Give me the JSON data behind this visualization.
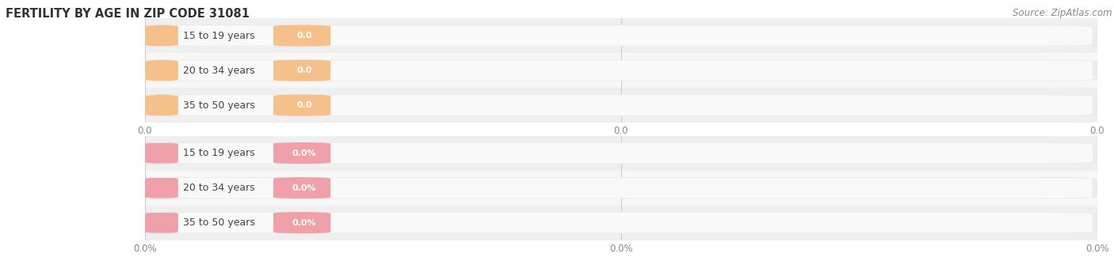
{
  "title": "FERTILITY BY AGE IN ZIP CODE 31081",
  "source": "Source: ZipAtlas.com",
  "categories": [
    "15 to 19 years",
    "20 to 34 years",
    "35 to 50 years"
  ],
  "labels_top": [
    "0.0",
    "0.0",
    "0.0"
  ],
  "labels_bottom": [
    "0.0%",
    "0.0%",
    "0.0%"
  ],
  "bar_color_top": "#f5c08a",
  "circle_color_top": "#e8a060",
  "bar_color_bottom": "#f0a0a8",
  "circle_color_bottom": "#e07878",
  "bg_color": "#ffffff",
  "row_bg": [
    "#f2f2f2",
    "#f8f8f8",
    "#f2f2f2"
  ],
  "row_bg2": [
    "#f2f2f2",
    "#f8f8f8",
    "#f2f2f2"
  ],
  "grid_color": "#cccccc",
  "text_color": "#444444",
  "tick_label_color": "#888888",
  "title_color": "#333333",
  "source_color": "#888888",
  "title_fontsize": 10.5,
  "source_fontsize": 8.5,
  "cat_fontsize": 9,
  "val_fontsize": 8,
  "tick_fontsize": 8.5
}
